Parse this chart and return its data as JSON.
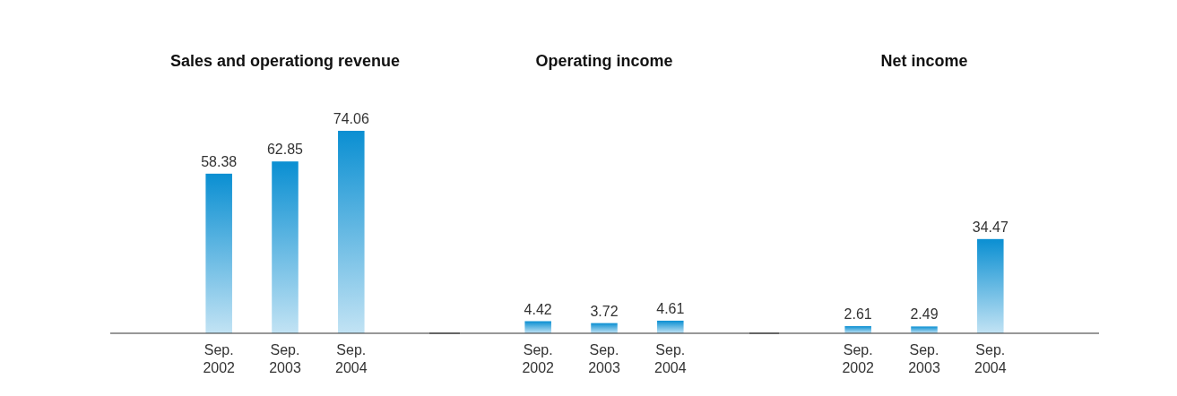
{
  "chart_data": [
    {
      "type": "bar",
      "title": "Sales and operationg revenue",
      "categories": [
        "Sep. 2002",
        "Sep. 2003",
        "Sep. 2004"
      ],
      "values": [
        58.38,
        62.85,
        74.06
      ],
      "color": "#0a8fd2",
      "data_labels": true
    },
    {
      "type": "bar",
      "title": "Operating income",
      "categories": [
        "Sep. 2002",
        "Sep. 2003",
        "Sep. 2004"
      ],
      "values": [
        4.42,
        3.72,
        4.61
      ],
      "color": "#0a8fd2",
      "data_labels": true
    },
    {
      "type": "bar",
      "title": "Net income",
      "categories": [
        "Sep. 2002",
        "Sep. 2003",
        "Sep. 2004"
      ],
      "values": [
        2.61,
        2.49,
        34.47
      ],
      "color": "#0a8fd2",
      "data_labels": true
    }
  ]
}
